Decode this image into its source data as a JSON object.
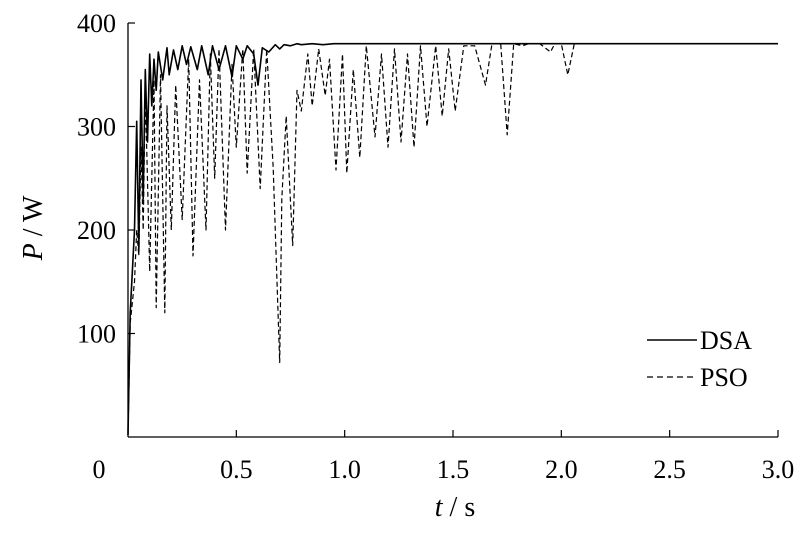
{
  "chart_data": {
    "type": "line",
    "xlabel": {
      "var": "t",
      "sep": " / ",
      "unit": "s"
    },
    "ylabel": {
      "var": "P",
      "sep": " / ",
      "unit": "W"
    },
    "xlim": [
      0,
      3.0
    ],
    "ylim": [
      0,
      400
    ],
    "x_ticks": [
      0,
      0.5,
      1.0,
      1.5,
      2.0,
      2.5,
      3.0
    ],
    "x_tick_labels": [
      "0",
      "0.5",
      "1.0",
      "1.5",
      "2.0",
      "2.5",
      "3.0"
    ],
    "y_ticks": [
      100,
      200,
      300,
      400
    ],
    "y_tick_labels": [
      "100",
      "200",
      "300",
      "400"
    ],
    "grid": false,
    "legend_position": "bottom-right",
    "series": [
      {
        "name": "DSA",
        "line_style": "solid",
        "color": "#000000",
        "x": [
          0,
          0.01,
          0.03,
          0.04,
          0.05,
          0.06,
          0.07,
          0.08,
          0.09,
          0.1,
          0.11,
          0.12,
          0.13,
          0.14,
          0.16,
          0.18,
          0.19,
          0.21,
          0.23,
          0.25,
          0.27,
          0.29,
          0.32,
          0.34,
          0.37,
          0.39,
          0.42,
          0.45,
          0.48,
          0.5,
          0.53,
          0.55,
          0.58,
          0.6,
          0.62,
          0.65,
          0.68,
          0.7,
          0.72,
          0.75,
          0.78,
          0.8,
          0.85,
          0.9,
          0.95,
          1.0,
          1.5,
          2.0,
          2.5,
          3.0
        ],
        "y": [
          2,
          120,
          200,
          305,
          180,
          345,
          230,
          355,
          285,
          370,
          320,
          365,
          335,
          372,
          345,
          376,
          350,
          374,
          355,
          378,
          360,
          377,
          355,
          378,
          350,
          378,
          355,
          378,
          348,
          378,
          365,
          378,
          370,
          340,
          376,
          372,
          379,
          375,
          379,
          378,
          380,
          379,
          380,
          379,
          380,
          380,
          380,
          380,
          380,
          380
        ]
      },
      {
        "name": "PSO",
        "line_style": "dashed",
        "color": "#000000",
        "x": [
          0,
          0.01,
          0.03,
          0.04,
          0.05,
          0.06,
          0.07,
          0.08,
          0.1,
          0.12,
          0.13,
          0.15,
          0.17,
          0.18,
          0.2,
          0.22,
          0.25,
          0.28,
          0.3,
          0.33,
          0.36,
          0.38,
          0.4,
          0.42,
          0.45,
          0.48,
          0.5,
          0.53,
          0.55,
          0.58,
          0.61,
          0.64,
          0.67,
          0.7,
          0.71,
          0.73,
          0.76,
          0.78,
          0.8,
          0.83,
          0.85,
          0.88,
          0.91,
          0.93,
          0.96,
          0.99,
          1.01,
          1.04,
          1.07,
          1.1,
          1.14,
          1.17,
          1.2,
          1.23,
          1.26,
          1.29,
          1.32,
          1.35,
          1.38,
          1.42,
          1.45,
          1.48,
          1.51,
          1.55,
          1.6,
          1.65,
          1.68,
          1.72,
          1.75,
          1.78,
          1.82,
          1.85,
          1.9,
          1.95,
          1.97,
          2.0,
          2.03,
          2.06,
          2.1,
          2.15,
          2.5,
          3.0
        ],
        "y": [
          2,
          110,
          150,
          200,
          175,
          280,
          200,
          335,
          160,
          345,
          125,
          350,
          120,
          320,
          200,
          340,
          210,
          365,
          175,
          345,
          200,
          370,
          250,
          375,
          200,
          360,
          280,
          375,
          255,
          375,
          240,
          375,
          260,
          72,
          230,
          310,
          185,
          335,
          315,
          370,
          320,
          375,
          330,
          365,
          258,
          370,
          255,
          355,
          270,
          378,
          290,
          370,
          280,
          375,
          285,
          370,
          280,
          378,
          300,
          378,
          310,
          375,
          315,
          378,
          378,
          340,
          380,
          380,
          292,
          380,
          378,
          380,
          380,
          372,
          380,
          380,
          350,
          380,
          380,
          380,
          380,
          380
        ]
      }
    ]
  }
}
